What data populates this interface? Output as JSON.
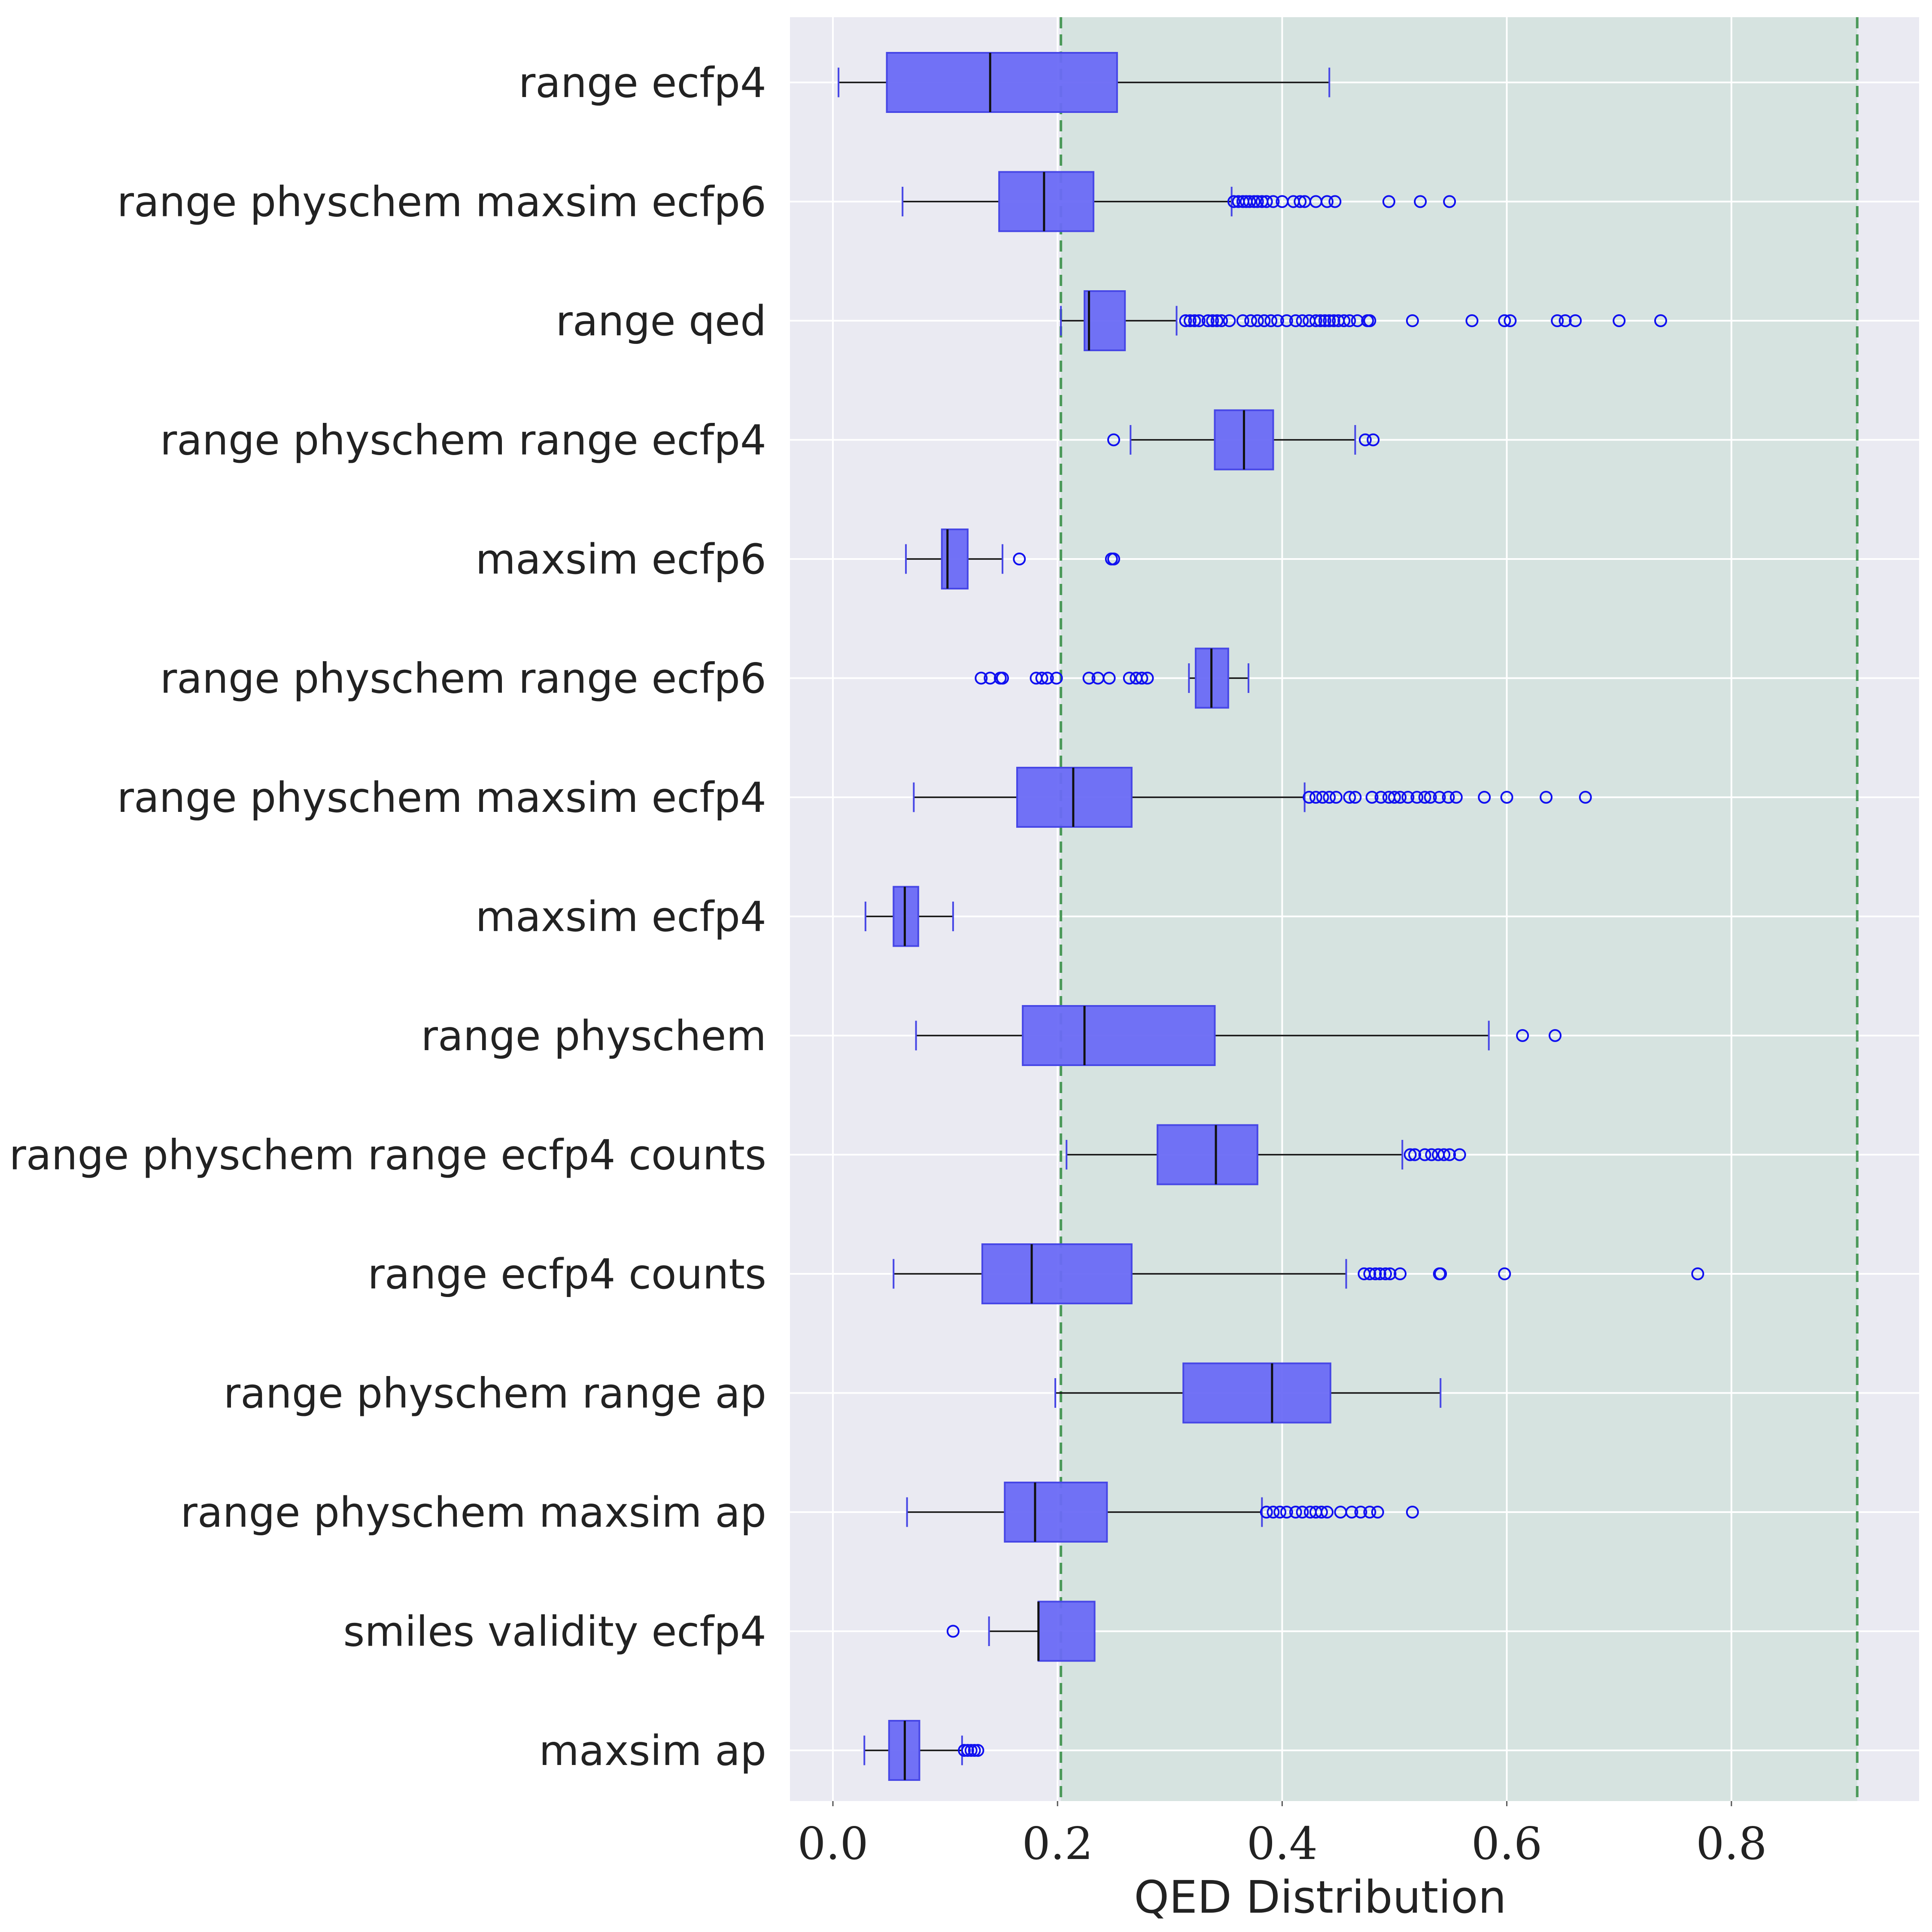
{
  "chart_data": {
    "type": "box",
    "orientation": "horizontal",
    "xlabel": "QED Distribution",
    "xlim": [
      -0.02,
      0.96
    ],
    "xticks": [
      0.0,
      0.2,
      0.4,
      0.6,
      0.8
    ],
    "xtick_labels": [
      "0.0",
      "0.2",
      "0.4",
      "0.6",
      "0.8"
    ],
    "grid": true,
    "reference_lines": [
      0.203,
      0.912
    ],
    "shaded_region": [
      0.203,
      0.912
    ],
    "colors": {
      "background": "#eaeaf2",
      "grid": "#ffffff",
      "box_fill": "#6a6af5",
      "box_edge": "#4747e6",
      "outlier": "#1010f0",
      "reference_line": "#4c9a5a",
      "shaded_region": "#cfe0d9"
    },
    "series": [
      {
        "name": "range ecfp4",
        "whislo": 0.005,
        "q1": 0.048,
        "med": 0.14,
        "q3": 0.253,
        "whishi": 0.442,
        "fliers": []
      },
      {
        "name": "range physchem maxsim ecfp6",
        "whislo": 0.062,
        "q1": 0.148,
        "med": 0.188,
        "q3": 0.232,
        "whishi": 0.355,
        "fliers": [
          0.357,
          0.361,
          0.365,
          0.368,
          0.371,
          0.375,
          0.378,
          0.382,
          0.386,
          0.392,
          0.4,
          0.41,
          0.416,
          0.42,
          0.43,
          0.44,
          0.447,
          0.495,
          0.523,
          0.549
        ]
      },
      {
        "name": "range qed",
        "whislo": 0.203,
        "q1": 0.224,
        "med": 0.228,
        "q3": 0.26,
        "whishi": 0.306,
        "fliers": [
          0.314,
          0.318,
          0.322,
          0.326,
          0.334,
          0.338,
          0.342,
          0.346,
          0.353,
          0.365,
          0.372,
          0.378,
          0.384,
          0.39,
          0.396,
          0.404,
          0.412,
          0.418,
          0.424,
          0.43,
          0.434,
          0.438,
          0.442,
          0.446,
          0.45,
          0.455,
          0.46,
          0.467,
          0.476,
          0.478,
          0.516,
          0.569,
          0.598,
          0.603,
          0.645,
          0.652,
          0.661,
          0.7,
          0.737
        ]
      },
      {
        "name": "range physchem range ecfp4",
        "whislo": 0.265,
        "q1": 0.34,
        "med": 0.366,
        "q3": 0.392,
        "whishi": 0.465,
        "fliers": [
          0.25,
          0.474,
          0.481
        ]
      },
      {
        "name": "maxsim ecfp6",
        "whislo": 0.065,
        "q1": 0.097,
        "med": 0.102,
        "q3": 0.12,
        "whishi": 0.151,
        "fliers": [
          0.166,
          0.248,
          0.25
        ]
      },
      {
        "name": "range physchem range ecfp6",
        "whislo": 0.317,
        "q1": 0.323,
        "med": 0.337,
        "q3": 0.352,
        "whishi": 0.37,
        "fliers": [
          0.132,
          0.14,
          0.149,
          0.151,
          0.181,
          0.186,
          0.191,
          0.199,
          0.228,
          0.236,
          0.246,
          0.264,
          0.27,
          0.275,
          0.28
        ]
      },
      {
        "name": "range physchem maxsim ecfp4",
        "whislo": 0.072,
        "q1": 0.164,
        "med": 0.214,
        "q3": 0.266,
        "whishi": 0.42,
        "fliers": [
          0.424,
          0.43,
          0.436,
          0.442,
          0.448,
          0.46,
          0.465,
          0.48,
          0.488,
          0.495,
          0.5,
          0.505,
          0.512,
          0.52,
          0.527,
          0.532,
          0.54,
          0.548,
          0.555,
          0.58,
          0.6,
          0.635,
          0.67
        ]
      },
      {
        "name": "maxsim ecfp4",
        "whislo": 0.029,
        "q1": 0.054,
        "med": 0.064,
        "q3": 0.076,
        "whishi": 0.107,
        "fliers": []
      },
      {
        "name": "range physchem",
        "whislo": 0.074,
        "q1": 0.169,
        "med": 0.224,
        "q3": 0.34,
        "whishi": 0.584,
        "fliers": [
          0.614,
          0.643
        ]
      },
      {
        "name": "range physchem range ecfp4 counts",
        "whislo": 0.208,
        "q1": 0.289,
        "med": 0.341,
        "q3": 0.378,
        "whishi": 0.507,
        "fliers": [
          0.514,
          0.518,
          0.527,
          0.533,
          0.539,
          0.544,
          0.549,
          0.558
        ]
      },
      {
        "name": "range ecfp4 counts",
        "whislo": 0.054,
        "q1": 0.133,
        "med": 0.177,
        "q3": 0.266,
        "whishi": 0.457,
        "fliers": [
          0.473,
          0.478,
          0.483,
          0.487,
          0.492,
          0.496,
          0.505,
          0.54,
          0.541,
          0.598,
          0.77
        ]
      },
      {
        "name": "range physchem range ap",
        "whislo": 0.198,
        "q1": 0.312,
        "med": 0.391,
        "q3": 0.443,
        "whishi": 0.541,
        "fliers": []
      },
      {
        "name": "range physchem maxsim ap",
        "whislo": 0.066,
        "q1": 0.153,
        "med": 0.18,
        "q3": 0.244,
        "whishi": 0.382,
        "fliers": [
          0.386,
          0.392,
          0.398,
          0.404,
          0.412,
          0.418,
          0.425,
          0.43,
          0.435,
          0.44,
          0.452,
          0.462,
          0.47,
          0.478,
          0.485,
          0.516
        ]
      },
      {
        "name": "smiles validity ecfp4",
        "whislo": 0.139,
        "q1": 0.183,
        "med": 0.183,
        "q3": 0.233,
        "whishi": 0.233,
        "fliers": [
          0.107
        ]
      },
      {
        "name": "maxsim ap",
        "whislo": 0.028,
        "q1": 0.05,
        "med": 0.064,
        "q3": 0.077,
        "whishi": 0.115,
        "fliers": [
          0.117,
          0.12,
          0.123,
          0.126,
          0.129
        ]
      }
    ]
  }
}
